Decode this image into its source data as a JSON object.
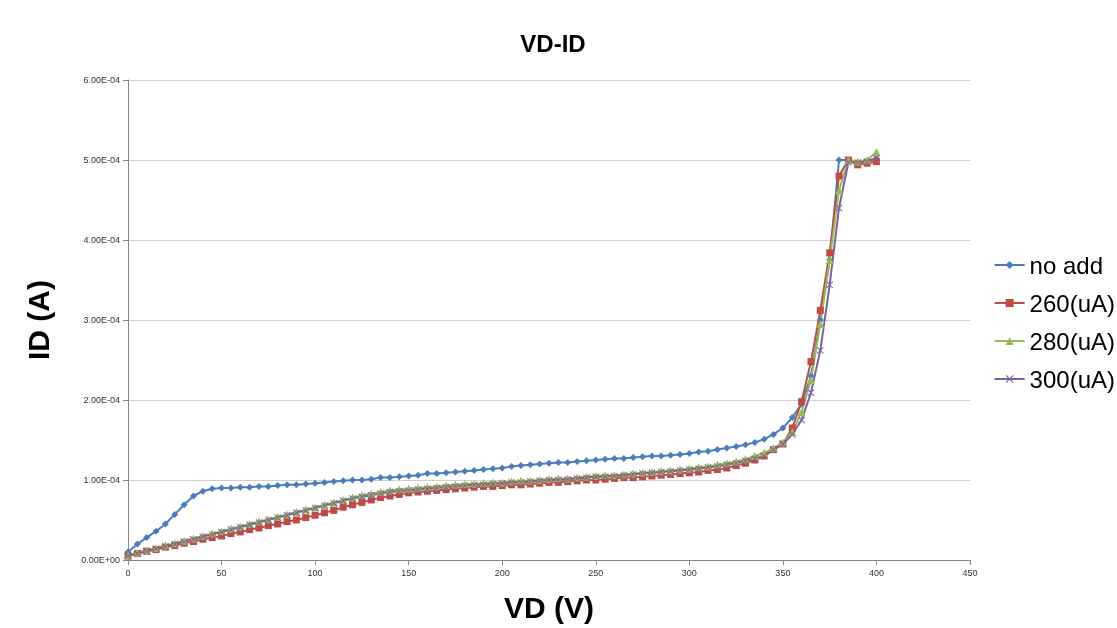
{
  "chart_data": {
    "type": "line",
    "title": "VD-ID",
    "xlabel": "VD (V)",
    "ylabel": "ID (A)",
    "legend": "right",
    "grid": "y",
    "xlim": [
      0,
      450
    ],
    "xticks": [
      0,
      50,
      100,
      150,
      200,
      250,
      300,
      350,
      400,
      450
    ],
    "ylim": [
      0,
      0.0006
    ],
    "yticks": [
      {
        "value": 0,
        "label": "0.00E+00"
      },
      {
        "value": 0.0001,
        "label": "1.00E-04"
      },
      {
        "value": 0.0002,
        "label": "2.00E-04"
      },
      {
        "value": 0.0003,
        "label": "3.00E-04"
      },
      {
        "value": 0.0004,
        "label": "4.00E-04"
      },
      {
        "value": 0.0005,
        "label": "5.00E-04"
      },
      {
        "value": 0.0006,
        "label": "6.00E-04"
      }
    ],
    "x": [
      0,
      5,
      10,
      15,
      20,
      25,
      30,
      35,
      40,
      45,
      50,
      55,
      60,
      65,
      70,
      75,
      80,
      85,
      90,
      95,
      100,
      105,
      110,
      115,
      120,
      125,
      130,
      135,
      140,
      145,
      150,
      155,
      160,
      165,
      170,
      175,
      180,
      185,
      190,
      195,
      200,
      205,
      210,
      215,
      220,
      225,
      230,
      235,
      240,
      245,
      250,
      255,
      260,
      265,
      270,
      275,
      280,
      285,
      290,
      295,
      300,
      305,
      310,
      315,
      320,
      325,
      330,
      335,
      340,
      345,
      350,
      355,
      360,
      365,
      370,
      375,
      380,
      385,
      390,
      395,
      400
    ],
    "series": [
      {
        "name": "no add",
        "color": "#4a7ebb",
        "marker": "diamond",
        "values": [
          1e-05,
          2e-05,
          2.8e-05,
          3.6e-05,
          4.5e-05,
          5.7e-05,
          6.9e-05,
          8e-05,
          8.6e-05,
          8.9e-05,
          9e-05,
          9e-05,
          9.1e-05,
          9.1e-05,
          9.2e-05,
          9.2e-05,
          9.3e-05,
          9.4e-05,
          9.4e-05,
          9.5e-05,
          9.6e-05,
          9.7e-05,
          9.8e-05,
          9.9e-05,
          0.0001,
          0.0001,
          0.000101,
          0.000103,
          0.000103,
          0.000104,
          0.000105,
          0.000106,
          0.000108,
          0.000108,
          0.000109,
          0.00011,
          0.000111,
          0.000112,
          0.000113,
          0.000114,
          0.000115,
          0.000117,
          0.000118,
          0.000119,
          0.00012,
          0.000121,
          0.000122,
          0.000122,
          0.000123,
          0.000124,
          0.000125,
          0.000126,
          0.000127,
          0.000127,
          0.000128,
          0.000129,
          0.00013,
          0.00013,
          0.000131,
          0.000132,
          0.000133,
          0.000135,
          0.000136,
          0.000138,
          0.00014,
          0.000142,
          0.000144,
          0.000147,
          0.000151,
          0.000157,
          0.000165,
          0.000178,
          0.000195,
          0.00023,
          0.0003,
          0.000375,
          0.0005,
          0.0005,
          0.000497,
          0.000499,
          0.000502
        ]
      },
      {
        "name": "260(uA)",
        "color": "#be4b48",
        "marker": "square",
        "values": [
          5e-06,
          8e-06,
          1.1e-05,
          1.3e-05,
          1.6e-05,
          1.8e-05,
          2.1e-05,
          2.3e-05,
          2.6e-05,
          2.8e-05,
          3e-05,
          3.3e-05,
          3.5e-05,
          3.8e-05,
          4e-05,
          4.3e-05,
          4.5e-05,
          4.8e-05,
          5e-05,
          5.3e-05,
          5.6e-05,
          5.9e-05,
          6.2e-05,
          6.6e-05,
          6.9e-05,
          7.2e-05,
          7.5e-05,
          7.8e-05,
          8e-05,
          8.2e-05,
          8.4e-05,
          8.5e-05,
          8.6e-05,
          8.7e-05,
          8.8e-05,
          8.9e-05,
          9e-05,
          9.1e-05,
          9.2e-05,
          9.2e-05,
          9.3e-05,
          9.4e-05,
          9.4e-05,
          9.5e-05,
          9.6e-05,
          9.7e-05,
          9.7e-05,
          9.8e-05,
          9.9e-05,
          0.0001,
          0.0001,
          0.000101,
          0.000102,
          0.000103,
          0.000103,
          0.000104,
          0.000105,
          0.000106,
          0.000107,
          0.000108,
          0.000109,
          0.00011,
          0.000112,
          0.000113,
          0.000115,
          0.000118,
          0.000121,
          0.000125,
          0.00013,
          0.000138,
          0.000145,
          0.000165,
          0.000198,
          0.000248,
          0.000312,
          0.000384,
          0.00048,
          0.0005,
          0.000494,
          0.000496,
          0.000498
        ]
      },
      {
        "name": "280(uA)",
        "color": "#98b954",
        "marker": "triangle",
        "values": [
          6e-06,
          9e-06,
          1.2e-05,
          1.5e-05,
          1.8e-05,
          2.1e-05,
          2.4e-05,
          2.7e-05,
          3e-05,
          3.3e-05,
          3.6e-05,
          3.9e-05,
          4.2e-05,
          4.5e-05,
          4.8e-05,
          5.1e-05,
          5.4e-05,
          5.7e-05,
          6e-05,
          6.3e-05,
          6.6e-05,
          6.9e-05,
          7.2e-05,
          7.5e-05,
          7.8e-05,
          8.1e-05,
          8.3e-05,
          8.5e-05,
          8.7e-05,
          8.8e-05,
          8.9e-05,
          9e-05,
          9.1e-05,
          9.2e-05,
          9.3e-05,
          9.4e-05,
          9.5e-05,
          9.5e-05,
          9.6e-05,
          9.7e-05,
          9.7e-05,
          9.8e-05,
          9.9e-05,
          9.9e-05,
          0.0001,
          0.000101,
          0.000102,
          0.000102,
          0.000103,
          0.000104,
          0.000105,
          0.000106,
          0.000106,
          0.000107,
          0.000108,
          0.000109,
          0.00011,
          0.000111,
          0.000112,
          0.000113,
          0.000114,
          0.000116,
          0.000117,
          0.000119,
          0.000121,
          0.000123,
          0.000126,
          0.00013,
          0.000134,
          0.00014,
          0.000147,
          0.00016,
          0.000185,
          0.000225,
          0.000295,
          0.000375,
          0.000462,
          0.0005,
          0.000498,
          0.0005,
          0.00051
        ]
      },
      {
        "name": "300(uA)",
        "color": "#7d60a0",
        "marker": "cross",
        "values": [
          5e-06,
          8e-06,
          1.1e-05,
          1.4e-05,
          1.7e-05,
          2e-05,
          2.3e-05,
          2.6e-05,
          2.9e-05,
          3.2e-05,
          3.5e-05,
          3.8e-05,
          4.1e-05,
          4.4e-05,
          4.7e-05,
          5e-05,
          5.3e-05,
          5.6e-05,
          5.9e-05,
          6.2e-05,
          6.5e-05,
          6.8e-05,
          7.1e-05,
          7.4e-05,
          7.7e-05,
          7.9e-05,
          8.1e-05,
          8.3e-05,
          8.5e-05,
          8.6e-05,
          8.7e-05,
          8.8e-05,
          8.9e-05,
          9e-05,
          9.1e-05,
          9.2e-05,
          9.3e-05,
          9.4e-05,
          9.4e-05,
          9.5e-05,
          9.6e-05,
          9.7e-05,
          9.7e-05,
          9.8e-05,
          9.9e-05,
          0.0001,
          0.0001,
          0.000101,
          0.000102,
          0.000103,
          0.000104,
          0.000104,
          0.000105,
          0.000106,
          0.000107,
          0.000108,
          0.000109,
          0.00011,
          0.000111,
          0.000112,
          0.000113,
          0.000114,
          0.000116,
          0.000117,
          0.000119,
          0.000121,
          0.000124,
          0.000127,
          0.00013,
          0.000138,
          0.000145,
          0.000157,
          0.000175,
          0.000209,
          0.000262,
          0.000344,
          0.00044,
          0.000497,
          0.000497,
          0.000498,
          0.000502
        ]
      }
    ]
  }
}
